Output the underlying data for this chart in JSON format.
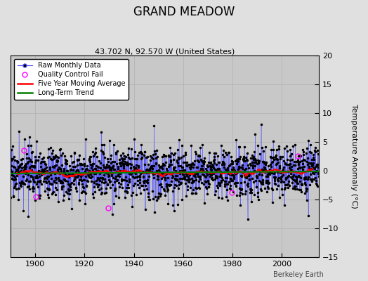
{
  "title": "GRAND MEADOW",
  "subtitle": "43.702 N, 92.570 W (United States)",
  "ylabel": "Temperature Anomaly (°C)",
  "credit": "Berkeley Earth",
  "ylim": [
    -15,
    20
  ],
  "yticks": [
    -15,
    -10,
    -5,
    0,
    5,
    10,
    15,
    20
  ],
  "xlim": [
    1890,
    2015
  ],
  "xticks": [
    1900,
    1920,
    1940,
    1960,
    1980,
    2000
  ],
  "start_year": 1890,
  "end_year": 2014,
  "seed": 17,
  "background_color": "#e0e0e0",
  "plot_bg_color": "#c8c8c8",
  "raw_line_color": "#4444ff",
  "raw_marker_color": "black",
  "qc_color": "magenta",
  "moving_avg_color": "red",
  "trend_color": "green",
  "noise_std": 2.2,
  "n_qc_fails": 5,
  "qc_threshold": 5.5,
  "moving_avg_window": 60
}
